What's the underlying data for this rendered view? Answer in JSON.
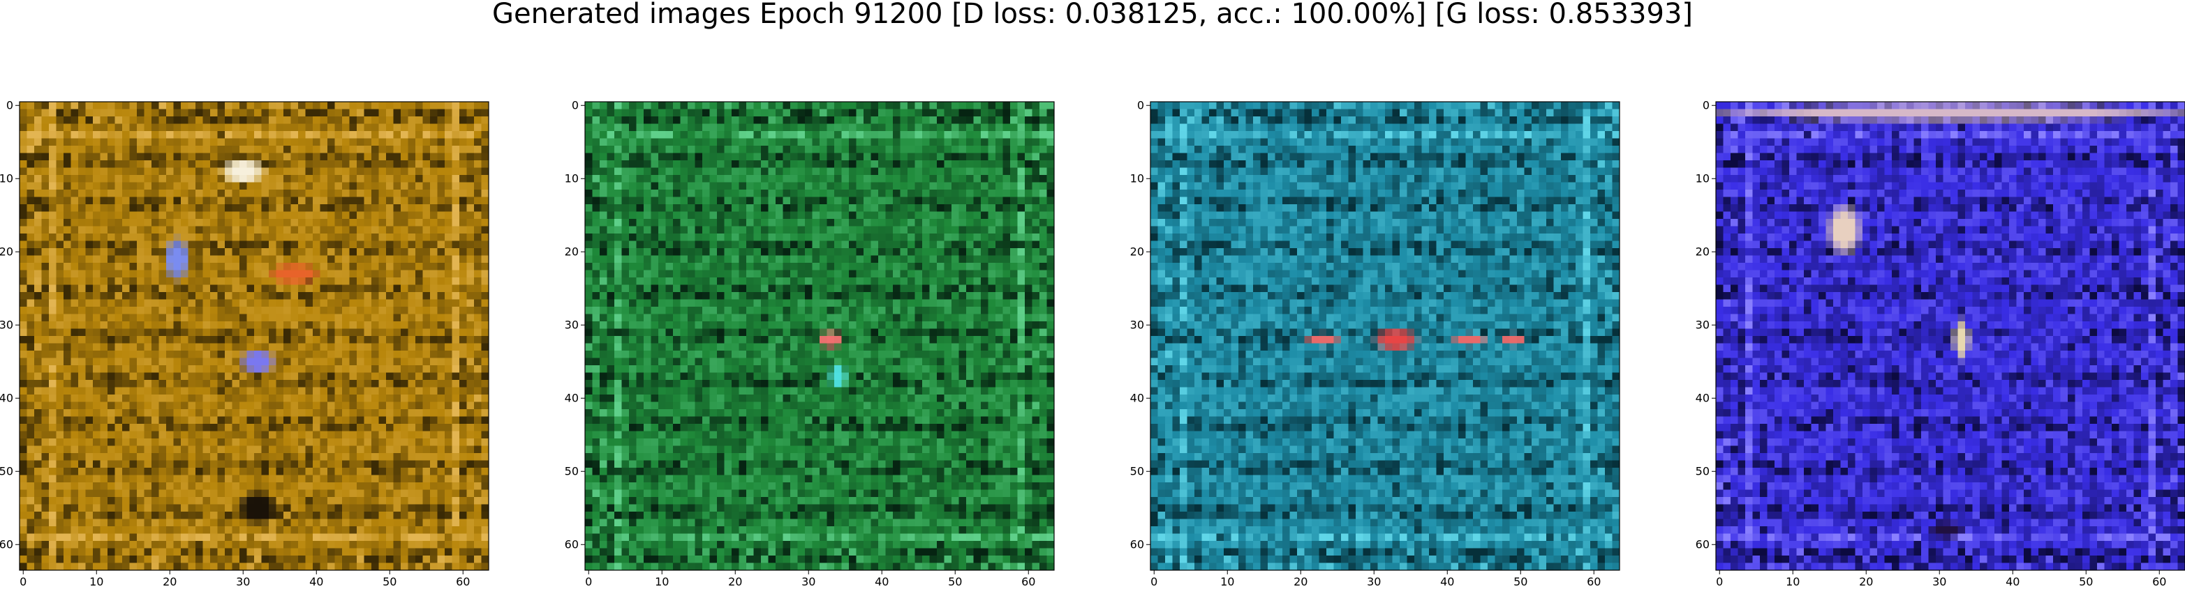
{
  "figure": {
    "title": "Generated images Epoch 91200 [D loss: 0.038125, acc.: 100.00%] [G loss: 0.853393]"
  },
  "chart_data": [
    {
      "type": "heatmap",
      "title": "",
      "xlabel": "",
      "ylabel": "",
      "xlim": [
        -0.5,
        63.5
      ],
      "ylim": [
        63.5,
        -0.5
      ],
      "xticks": [
        0,
        10,
        20,
        30,
        40,
        50,
        60
      ],
      "yticks": [
        0,
        10,
        20,
        30,
        40,
        50,
        60
      ],
      "base_color": "#b8860b",
      "dark_color": "#3a2a05",
      "light_color": "#e3b552",
      "blobs": [
        {
          "x": 21,
          "y": 21,
          "rx": 1.5,
          "ry": 2.5,
          "color": "#7a8cf0"
        },
        {
          "x": 32,
          "y": 35,
          "rx": 2,
          "ry": 1.5,
          "color": "#7a78f0"
        },
        {
          "x": 30,
          "y": 9,
          "rx": 2.5,
          "ry": 1.5,
          "color": "#f7f0dc"
        },
        {
          "x": 32,
          "y": 55,
          "rx": 2.5,
          "ry": 2,
          "color": "#1a1208"
        },
        {
          "x": 37,
          "y": 23,
          "rx": 3,
          "ry": 1.2,
          "color": "#e8632a"
        }
      ]
    },
    {
      "type": "heatmap",
      "title": "",
      "xlabel": "",
      "ylabel": "",
      "xlim": [
        -0.5,
        63.5
      ],
      "ylim": [
        63.5,
        -0.5
      ],
      "xticks": [
        0,
        10,
        20,
        30,
        40,
        50,
        60
      ],
      "yticks": [
        0,
        10,
        20,
        30,
        40,
        50,
        60
      ],
      "base_color": "#1f8a3a",
      "dark_color": "#062412",
      "light_color": "#5fd08a",
      "blobs": [
        {
          "x": 33,
          "y": 32,
          "rx": 1.5,
          "ry": 1,
          "color": "#f07070"
        },
        {
          "x": 34,
          "y": 37,
          "rx": 1,
          "ry": 1.5,
          "color": "#4fe0e0"
        }
      ]
    },
    {
      "type": "heatmap",
      "title": "",
      "xlabel": "",
      "ylabel": "",
      "xlim": [
        -0.5,
        63.5
      ],
      "ylim": [
        63.5,
        -0.5
      ],
      "xticks": [
        0,
        10,
        20,
        30,
        40,
        50,
        60
      ],
      "yticks": [
        0,
        10,
        20,
        30,
        40,
        50,
        60
      ],
      "base_color": "#1e8ea8",
      "dark_color": "#06303a",
      "light_color": "#60d6e8",
      "blobs": [
        {
          "x": 33,
          "y": 32,
          "rx": 2.5,
          "ry": 1.3,
          "color": "#e84545"
        },
        {
          "x": 23,
          "y": 32,
          "rx": 2,
          "ry": 0.8,
          "color": "#e86a6a"
        },
        {
          "x": 43,
          "y": 32,
          "rx": 2,
          "ry": 0.8,
          "color": "#e86a6a"
        },
        {
          "x": 49,
          "y": 32,
          "rx": 1.5,
          "ry": 0.8,
          "color": "#e86a6a"
        }
      ]
    },
    {
      "type": "heatmap",
      "title": "",
      "xlabel": "",
      "ylabel": "",
      "xlim": [
        -0.5,
        63.5
      ],
      "ylim": [
        63.5,
        -0.5
      ],
      "xticks": [
        0,
        10,
        20,
        30,
        40,
        50,
        60
      ],
      "yticks": [
        0,
        10,
        20,
        30,
        40,
        50,
        60
      ],
      "base_color": "#3a2ee6",
      "dark_color": "#0c0a40",
      "light_color": "#8a80ff",
      "blobs": [
        {
          "x": 17,
          "y": 17,
          "rx": 2,
          "ry": 3,
          "color": "#e8d0c0"
        },
        {
          "x": 33,
          "y": 32,
          "rx": 1,
          "ry": 2.5,
          "color": "#e8d8b0"
        },
        {
          "x": 32,
          "y": 1,
          "rx": 30,
          "ry": 1,
          "color": "#d6b8c8"
        },
        {
          "x": 31,
          "y": 58,
          "rx": 2,
          "ry": 1,
          "color": "#201040"
        }
      ]
    }
  ]
}
